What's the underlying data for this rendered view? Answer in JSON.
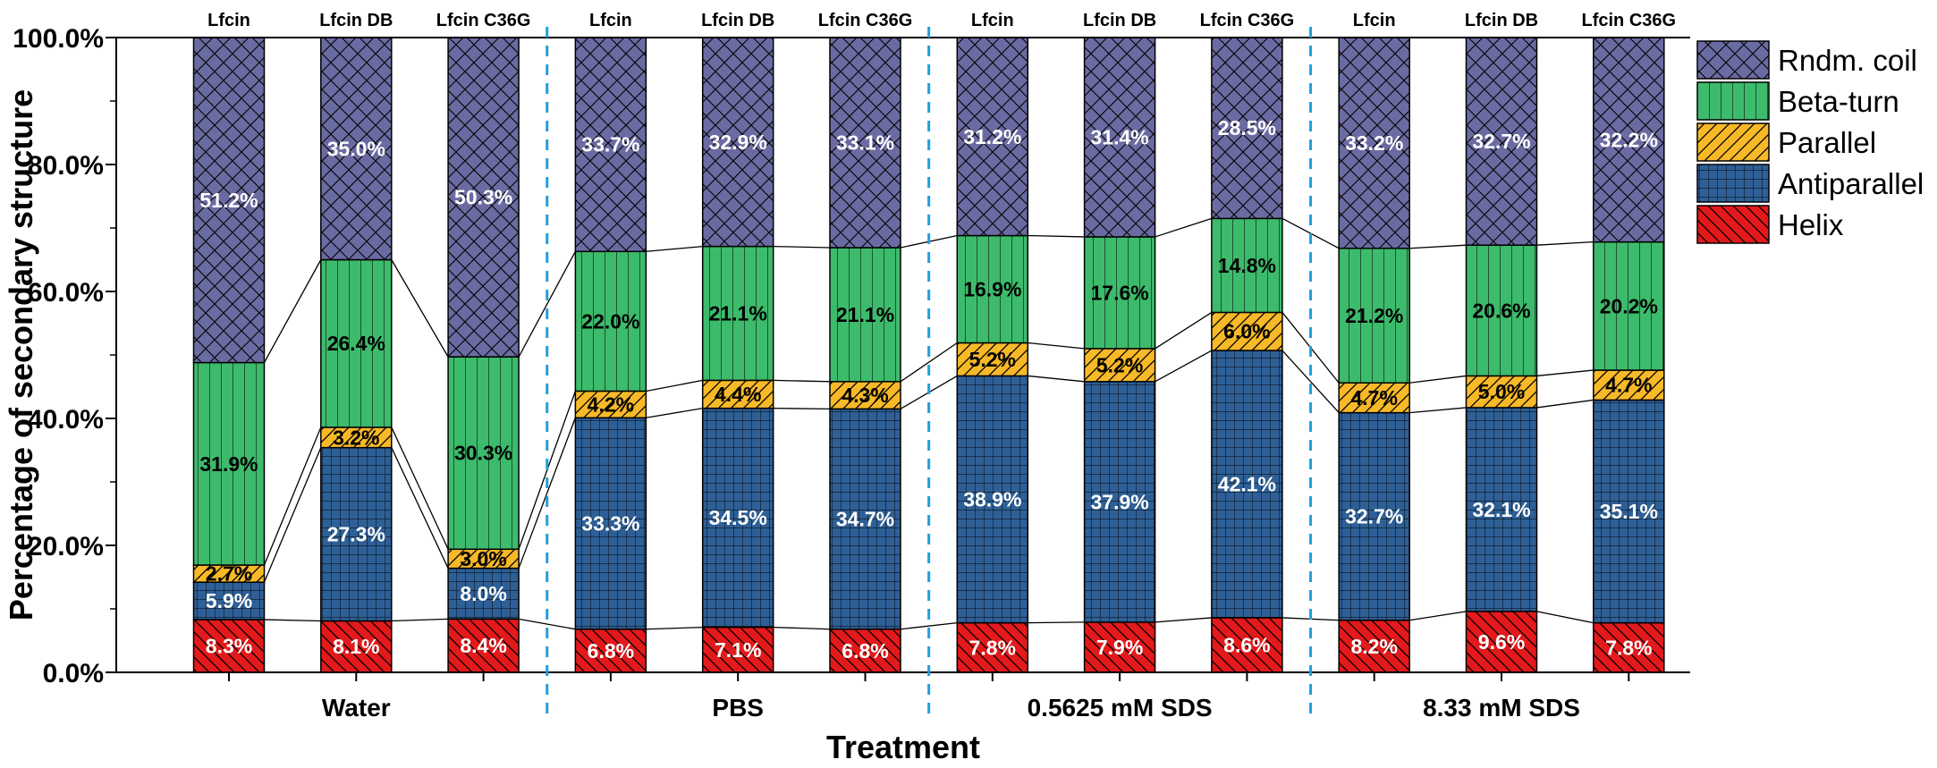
{
  "chart_data": {
    "type": "bar",
    "stacked": true,
    "xlabel": "Treatment",
    "ylabel": "Percentage of secondary structure",
    "ylim": [
      0,
      100
    ],
    "yticks": [
      "0.0%",
      "20.0%",
      "40.0%",
      "60.0%",
      "80.0%",
      "100.0%"
    ],
    "ytick_values": [
      0,
      20,
      40,
      60,
      80,
      100
    ],
    "groups": [
      "Water",
      "PBS",
      "0.5625 mM SDS",
      "8.33 mM SDS"
    ],
    "categories": [
      "Lfcin",
      "Lfcin DB",
      "Lfcin C36G",
      "Lfcin",
      "Lfcin DB",
      "Lfcin C36G",
      "Lfcin",
      "Lfcin DB",
      "Lfcin C36G",
      "Lfcin",
      "Lfcin DB",
      "Lfcin C36G"
    ],
    "series": [
      {
        "name": "Helix",
        "color": "#e3191b",
        "label_color": "#ffffff",
        "pattern": "diag-down",
        "values": [
          8.3,
          8.1,
          8.4,
          6.8,
          7.1,
          6.8,
          7.8,
          7.9,
          8.6,
          8.2,
          9.6,
          7.8
        ],
        "labels": [
          "8.3%",
          "8.1%",
          "8.4%",
          "6.8%",
          "7.1%",
          "6.8%",
          "7.8%",
          "7.9%",
          "8.6%",
          "8.2%",
          "9.6%",
          "7.8%"
        ]
      },
      {
        "name": "Antiparallel",
        "color": "#2e5f96",
        "label_color": "#ffffff",
        "pattern": "grid",
        "values": [
          5.9,
          27.3,
          8.0,
          33.3,
          34.5,
          34.7,
          38.9,
          37.9,
          42.1,
          32.7,
          32.1,
          35.1
        ],
        "labels": [
          "5.9%",
          "27.3%",
          "8.0%",
          "33.3%",
          "34.5%",
          "34.7%",
          "38.9%",
          "37.9%",
          "42.1%",
          "32.7%",
          "32.1%",
          "35.1%"
        ]
      },
      {
        "name": "Parallel",
        "color": "#f7b928",
        "label_color": "#000000",
        "pattern": "diag-up",
        "values": [
          2.7,
          3.2,
          3.0,
          4.2,
          4.4,
          4.3,
          5.2,
          5.2,
          6.0,
          4.7,
          5.0,
          4.7
        ],
        "labels": [
          "2.7%",
          "3.2%",
          "3.0%",
          "4.2%",
          "4.4%",
          "4.3%",
          "5.2%",
          "5.2%",
          "6.0%",
          "4.7%",
          "5.0%",
          "4.7%"
        ]
      },
      {
        "name": "Beta-turn",
        "color": "#3dbb6c",
        "label_color": "#000000",
        "pattern": "vertical",
        "values": [
          31.9,
          26.4,
          30.3,
          22.0,
          21.1,
          21.1,
          16.9,
          17.6,
          14.8,
          21.2,
          20.6,
          20.2
        ],
        "labels": [
          "31.9%",
          "26.4%",
          "30.3%",
          "22.0%",
          "21.1%",
          "21.1%",
          "16.9%",
          "17.6%",
          "14.8%",
          "21.2%",
          "20.6%",
          "20.2%"
        ]
      },
      {
        "name": "Rndm. coil",
        "color": "#6b6ba3",
        "label_color": "#ffffff",
        "pattern": "crosshatch",
        "values": [
          51.2,
          35.0,
          50.3,
          33.7,
          32.9,
          33.1,
          31.2,
          31.4,
          28.5,
          33.2,
          32.7,
          32.2
        ],
        "labels": [
          "51.2%",
          "35.0%",
          "50.3%",
          "33.7%",
          "32.9%",
          "33.1%",
          "31.2%",
          "31.4%",
          "28.5%",
          "33.2%",
          "32.7%",
          "32.2%"
        ]
      }
    ],
    "legend_order": [
      "Rndm. coil",
      "Beta-turn",
      "Parallel",
      "Antiparallel",
      "Helix"
    ],
    "legend": "right",
    "group_separator_color": "#1f9fdd",
    "grid": false
  }
}
